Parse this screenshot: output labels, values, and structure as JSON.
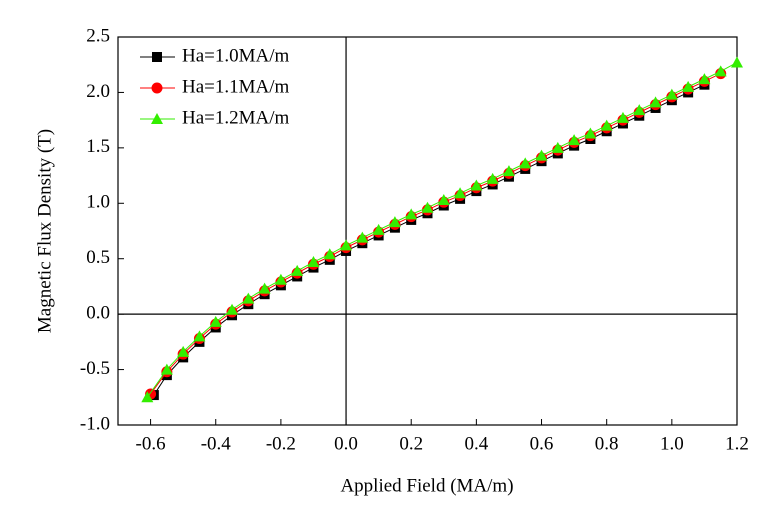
{
  "chart_data": {
    "type": "scatter-line",
    "x_label": "Applied Field (MA/m)",
    "y_label": "Magnetic Flux Density (T)",
    "xlim": [
      -0.7,
      1.2
    ],
    "ylim": [
      -1.0,
      2.5
    ],
    "xticks": [
      -0.6,
      -0.4,
      -0.2,
      {
        "value": 0,
        "label": "0.0"
      },
      0.2,
      0.4,
      0.6,
      0.8,
      {
        "value": 1,
        "label": "1.0"
      },
      1.2
    ],
    "yticks": [
      {
        "value": -1,
        "label": "-1.0"
      },
      -0.5,
      {
        "value": 0,
        "label": "0.0"
      },
      0.5,
      {
        "value": 1,
        "label": "1.0"
      },
      1.5,
      {
        "value": 2,
        "label": "2.0"
      },
      2.5
    ],
    "zero_lines": true,
    "legend": "upper-left",
    "series": [
      {
        "name": "Ha=1.0MA/m",
        "color": "#000000",
        "marker": "square",
        "x": [
          -0.59,
          -0.55,
          -0.5,
          -0.45,
          -0.4,
          -0.35,
          -0.3,
          -0.25,
          -0.2,
          -0.15,
          -0.1,
          -0.05,
          0,
          0.05,
          0.1,
          0.15,
          0.2,
          0.25,
          0.3,
          0.35,
          0.4,
          0.45,
          0.5,
          0.55,
          0.6,
          0.65,
          0.7,
          0.75,
          0.8,
          0.85,
          0.9,
          0.95,
          1,
          1.05,
          1.1
        ],
        "values": [
          -0.73,
          -0.55,
          -0.39,
          -0.25,
          -0.12,
          -0.01,
          0.09,
          0.18,
          0.26,
          0.34,
          0.42,
          0.49,
          0.57,
          0.64,
          0.71,
          0.78,
          0.85,
          0.91,
          0.98,
          1.04,
          1.11,
          1.17,
          1.24,
          1.31,
          1.38,
          1.45,
          1.52,
          1.58,
          1.65,
          1.72,
          1.79,
          1.86,
          1.93,
          2.0,
          2.07
        ]
      },
      {
        "name": "Ha=1.1MA/m",
        "color": "#ff0000",
        "marker": "circle",
        "x": [
          -0.6,
          -0.55,
          -0.5,
          -0.45,
          -0.4,
          -0.35,
          -0.3,
          -0.25,
          -0.2,
          -0.15,
          -0.1,
          -0.05,
          0,
          0.05,
          0.1,
          0.15,
          0.2,
          0.25,
          0.3,
          0.35,
          0.4,
          0.45,
          0.5,
          0.55,
          0.6,
          0.65,
          0.7,
          0.75,
          0.8,
          0.85,
          0.9,
          0.95,
          1,
          1.05,
          1.1,
          1.15
        ],
        "values": [
          -0.72,
          -0.52,
          -0.36,
          -0.22,
          -0.09,
          0.02,
          0.12,
          0.21,
          0.29,
          0.37,
          0.45,
          0.52,
          0.6,
          0.67,
          0.74,
          0.81,
          0.88,
          0.94,
          1.01,
          1.07,
          1.14,
          1.2,
          1.27,
          1.34,
          1.41,
          1.48,
          1.55,
          1.61,
          1.68,
          1.75,
          1.82,
          1.89,
          1.96,
          2.03,
          2.1,
          2.17
        ]
      },
      {
        "name": "Ha=1.2MA/m",
        "color": "#33ee00",
        "marker": "triangle",
        "x": [
          -0.61,
          -0.55,
          -0.5,
          -0.45,
          -0.4,
          -0.35,
          -0.3,
          -0.25,
          -0.2,
          -0.15,
          -0.1,
          -0.05,
          0,
          0.05,
          0.1,
          0.15,
          0.2,
          0.25,
          0.3,
          0.35,
          0.4,
          0.45,
          0.5,
          0.55,
          0.6,
          0.65,
          0.7,
          0.75,
          0.8,
          0.85,
          0.9,
          0.95,
          1,
          1.05,
          1.1,
          1.15,
          1.2
        ],
        "values": [
          -0.75,
          -0.5,
          -0.34,
          -0.2,
          -0.07,
          0.04,
          0.14,
          0.23,
          0.31,
          0.39,
          0.47,
          0.54,
          0.62,
          0.69,
          0.76,
          0.83,
          0.9,
          0.96,
          1.03,
          1.09,
          1.16,
          1.22,
          1.29,
          1.36,
          1.43,
          1.5,
          1.57,
          1.63,
          1.7,
          1.77,
          1.84,
          1.91,
          1.98,
          2.05,
          2.12,
          2.19,
          2.27
        ]
      }
    ]
  }
}
